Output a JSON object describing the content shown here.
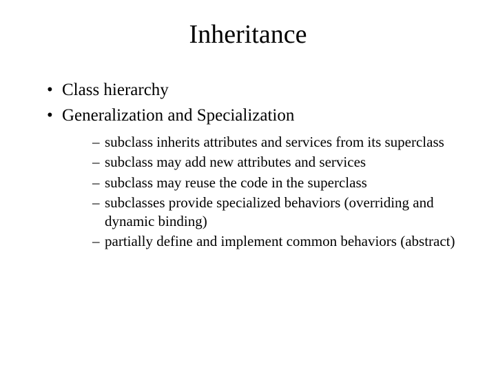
{
  "title": "Inheritance",
  "bullets": {
    "b0": "Class hierarchy",
    "b1": "Generalization and Specialization"
  },
  "subbullets": {
    "s0": "subclass inherits attributes and services from its superclass",
    "s1": "subclass may add new attributes and services",
    "s2": "subclass may reuse the code in the superclass",
    "s3": "subclasses provide specialized behaviors (overriding and dynamic binding)",
    "s4": "partially define and implement common behaviors (abstract)"
  },
  "colors": {
    "background": "#ffffff",
    "text": "#000000"
  },
  "typography": {
    "title_fontsize": 38,
    "bullet_fontsize": 25,
    "subbullet_fontsize": 21,
    "font_family": "Times New Roman"
  }
}
